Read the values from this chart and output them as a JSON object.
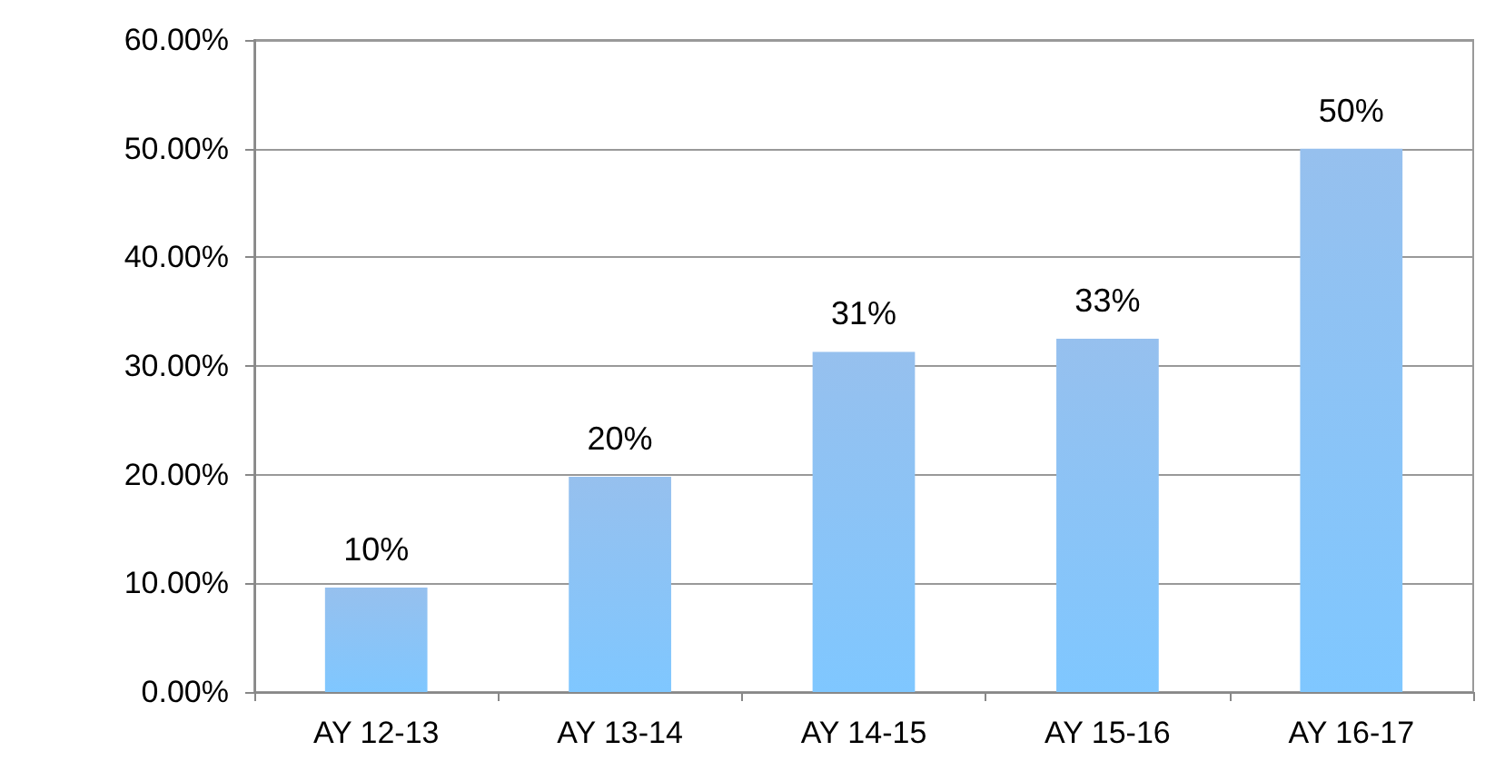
{
  "chart_data": {
    "type": "bar",
    "categories": [
      "AY 12-13",
      "AY 13-14",
      "AY 14-15",
      "AY 15-16",
      "AY 16-17"
    ],
    "values": [
      9.6,
      19.8,
      31.3,
      32.5,
      50
    ],
    "value_labels": [
      "10%",
      "20%",
      "31%",
      "33%",
      "50%"
    ],
    "color": "#6aa6e8",
    "ylim": [
      0,
      60
    ],
    "yticks": [
      {
        "value": 0,
        "label": "0.00%"
      },
      {
        "value": 10,
        "label": "10.00%"
      },
      {
        "value": 20,
        "label": "20.00%"
      },
      {
        "value": 30,
        "label": "30.00%"
      },
      {
        "value": 40,
        "label": "40.00%"
      },
      {
        "value": 50,
        "label": "50.00%"
      },
      {
        "value": 60,
        "label": "60.00%"
      }
    ],
    "grid": "y"
  }
}
